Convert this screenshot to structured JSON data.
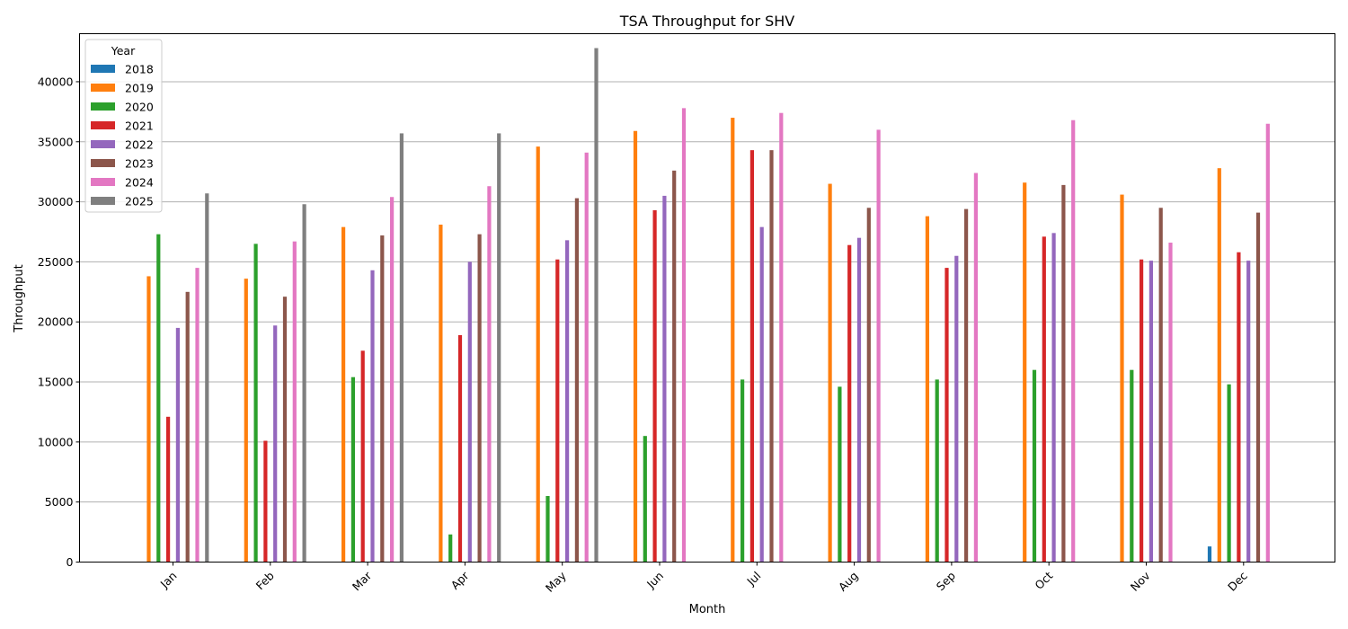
{
  "chart_data": {
    "type": "bar",
    "title": "TSA Throughput for SHV",
    "xlabel": "Month",
    "ylabel": "Throughput",
    "ylim": [
      0,
      44000
    ],
    "yticks": [
      0,
      5000,
      10000,
      15000,
      20000,
      25000,
      30000,
      35000,
      40000
    ],
    "grid": "horizontal",
    "legend_title": "Year",
    "legend_position": "top-left",
    "categories": [
      "Jan",
      "Feb",
      "Mar",
      "Apr",
      "May",
      "Jun",
      "Jul",
      "Aug",
      "Sep",
      "Oct",
      "Nov",
      "Dec"
    ],
    "series": [
      {
        "name": "2018",
        "color": "#1f77b4",
        "values": [
          null,
          null,
          null,
          null,
          null,
          null,
          null,
          null,
          null,
          null,
          null,
          1300
        ]
      },
      {
        "name": "2019",
        "color": "#ff7f0e",
        "values": [
          23800,
          23600,
          27900,
          28100,
          34600,
          35900,
          37000,
          31500,
          28800,
          31600,
          30600,
          32800
        ]
      },
      {
        "name": "2020",
        "color": "#2ca02c",
        "values": [
          27300,
          26500,
          15400,
          2300,
          5500,
          10500,
          15200,
          14600,
          15200,
          16000,
          16000,
          14800
        ]
      },
      {
        "name": "2021",
        "color": "#d62728",
        "values": [
          12100,
          10100,
          17600,
          18900,
          25200,
          29300,
          34300,
          26400,
          24500,
          27100,
          25200,
          25800
        ]
      },
      {
        "name": "2022",
        "color": "#9467bd",
        "values": [
          19500,
          19700,
          24300,
          25000,
          26800,
          30500,
          27900,
          27000,
          25500,
          27400,
          25100,
          25100
        ]
      },
      {
        "name": "2023",
        "color": "#8c564b",
        "values": [
          22500,
          22100,
          27200,
          27300,
          30300,
          32600,
          34300,
          29500,
          29400,
          31400,
          29500,
          29100
        ]
      },
      {
        "name": "2024",
        "color": "#e377c2",
        "values": [
          24500,
          26700,
          30400,
          31300,
          34100,
          37800,
          37400,
          36000,
          32400,
          36800,
          26600,
          36500
        ]
      },
      {
        "name": "2025",
        "color": "#7f7f7f",
        "values": [
          30700,
          29800,
          35700,
          35700,
          42800,
          null,
          null,
          null,
          null,
          null,
          null,
          null
        ]
      }
    ]
  }
}
